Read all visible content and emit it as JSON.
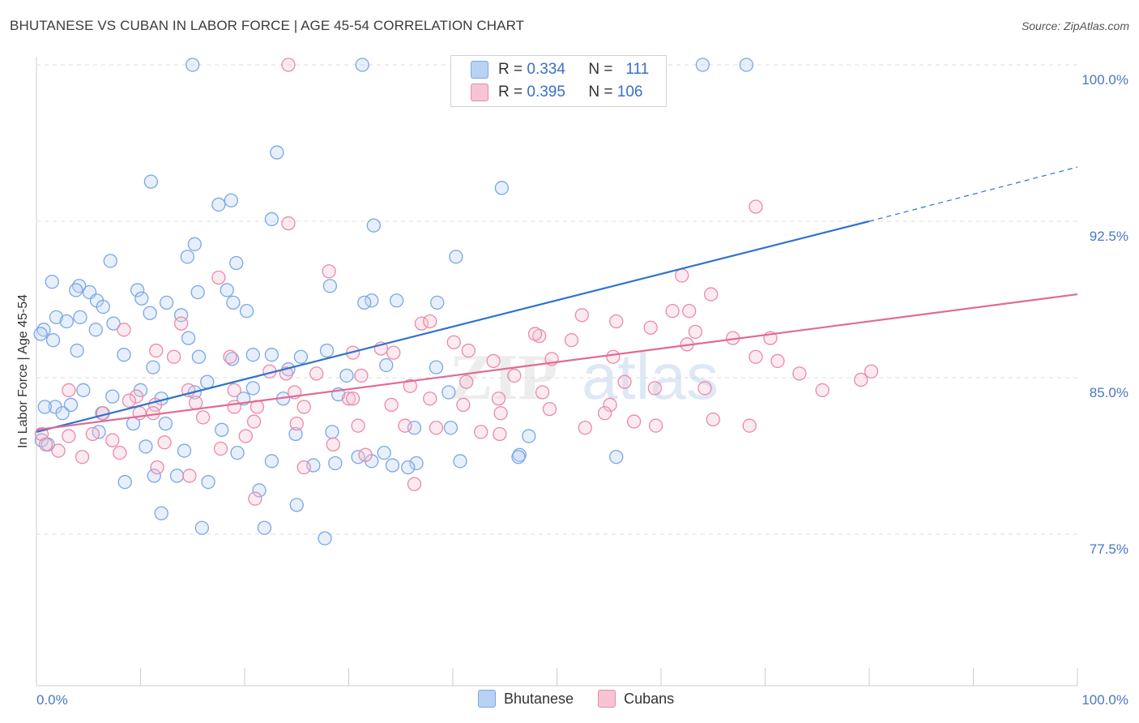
{
  "chart_data": {
    "type": "scatter",
    "title": "BHUTANESE VS CUBAN IN LABOR FORCE | AGE 45-54 CORRELATION CHART",
    "source": "Source: ZipAtlas.com",
    "xlabel": "",
    "ylabel": "In Labor Force | Age 45-54",
    "xlim": [
      0,
      100
    ],
    "ylim": [
      70.0,
      100.6
    ],
    "x_tick_labels": [
      "0.0%",
      "100.0%"
    ],
    "y_ticks": [
      {
        "value": 100.0,
        "label": "100.0%"
      },
      {
        "value": 92.5,
        "label": "92.5%"
      },
      {
        "value": 85.0,
        "label": "85.0%"
      },
      {
        "value": 77.5,
        "label": "77.5%"
      }
    ],
    "watermark": "ZIPatlas",
    "legend": [
      {
        "name": "Bhutanese",
        "r_label": "R =",
        "r": "0.334",
        "n_label": "N =",
        "n": "111",
        "color": "#7aa7e4",
        "fill": "#b9d2f3"
      },
      {
        "name": "Cubans",
        "r_label": "R =",
        "r": "0.395",
        "n_label": "N =",
        "n": "106",
        "color": "#e98aa8",
        "fill": "#f7c4d4"
      }
    ],
    "series": [
      {
        "name": "Bhutanese",
        "color": "#5b8fd6",
        "trend": {
          "x0": 0,
          "y0": 82.4,
          "x1": 80,
          "y1": 92.5,
          "dash_to_x": 100,
          "dash_to_y": 95.1,
          "line_color": "#2f73cf"
        },
        "points": [
          [
            15,
            100
          ],
          [
            31.3,
            100
          ],
          [
            64,
            100
          ],
          [
            68.2,
            100
          ],
          [
            23.1,
            95.8
          ],
          [
            11,
            94.4
          ],
          [
            44.7,
            94.1
          ],
          [
            18.7,
            93.5
          ],
          [
            17.5,
            93.3
          ],
          [
            22.6,
            92.6
          ],
          [
            32.4,
            92.3
          ],
          [
            15.2,
            91.4
          ],
          [
            14.5,
            90.8
          ],
          [
            40.3,
            90.8
          ],
          [
            7.1,
            90.6
          ],
          [
            19.2,
            90.5
          ],
          [
            1.5,
            89.6
          ],
          [
            4.1,
            89.4
          ],
          [
            5.1,
            89.1
          ],
          [
            15.5,
            89.1
          ],
          [
            18.3,
            89.2
          ],
          [
            3.8,
            89.2
          ],
          [
            9.7,
            89.2
          ],
          [
            28.2,
            89.4
          ],
          [
            5.8,
            88.7
          ],
          [
            18.9,
            88.6
          ],
          [
            34.6,
            88.7
          ],
          [
            38.5,
            88.6
          ],
          [
            32.2,
            88.7
          ],
          [
            31.5,
            88.6
          ],
          [
            10.9,
            88.1
          ],
          [
            6.4,
            88.4
          ],
          [
            13.9,
            88.0
          ],
          [
            20.2,
            88.2
          ],
          [
            4.2,
            87.9
          ],
          [
            7.4,
            87.6
          ],
          [
            0.7,
            87.3
          ],
          [
            1.9,
            87.9
          ],
          [
            14.6,
            86.9
          ],
          [
            10.1,
            88.8
          ],
          [
            12.5,
            88.6
          ],
          [
            2.9,
            87.7
          ],
          [
            5.7,
            87.3
          ],
          [
            0.4,
            87.1
          ],
          [
            1.6,
            86.8
          ],
          [
            3.9,
            86.3
          ],
          [
            8.4,
            86.1
          ],
          [
            22.6,
            86.1
          ],
          [
            25.4,
            86.0
          ],
          [
            27.9,
            86.3
          ],
          [
            15.6,
            86.0
          ],
          [
            18.8,
            85.9
          ],
          [
            20.8,
            86.1
          ],
          [
            11.2,
            85.5
          ],
          [
            24.2,
            85.4
          ],
          [
            29.8,
            85.1
          ],
          [
            33.6,
            85.6
          ],
          [
            38.4,
            85.5
          ],
          [
            16.4,
            84.8
          ],
          [
            20.8,
            84.5
          ],
          [
            10.0,
            84.4
          ],
          [
            15.2,
            84.3
          ],
          [
            19.9,
            84.0
          ],
          [
            23.7,
            84.0
          ],
          [
            29.0,
            84.2
          ],
          [
            39.6,
            84.3
          ],
          [
            4.5,
            84.4
          ],
          [
            7.3,
            84.1
          ],
          [
            12.0,
            84.0
          ],
          [
            1.8,
            83.6
          ],
          [
            3.3,
            83.7
          ],
          [
            0.8,
            83.6
          ],
          [
            2.5,
            83.3
          ],
          [
            6.3,
            83.3
          ],
          [
            9.3,
            82.8
          ],
          [
            12.4,
            82.8
          ],
          [
            17.8,
            82.5
          ],
          [
            24.9,
            82.3
          ],
          [
            28.4,
            82.4
          ],
          [
            36.3,
            82.6
          ],
          [
            39.8,
            82.6
          ],
          [
            47.3,
            82.2
          ],
          [
            0.5,
            82.0
          ],
          [
            1.1,
            81.8
          ],
          [
            6.0,
            82.4
          ],
          [
            10.5,
            81.7
          ],
          [
            14.2,
            81.5
          ],
          [
            19.3,
            81.4
          ],
          [
            22.6,
            81.0
          ],
          [
            28.7,
            80.9
          ],
          [
            32.2,
            81.0
          ],
          [
            36.5,
            80.9
          ],
          [
            40.7,
            81.0
          ],
          [
            46.4,
            81.3
          ],
          [
            46.3,
            81.2
          ],
          [
            55.7,
            81.2
          ],
          [
            13.5,
            80.3
          ],
          [
            8.5,
            80.0
          ],
          [
            11.3,
            80.3
          ],
          [
            16.5,
            80.0
          ],
          [
            21.4,
            79.6
          ],
          [
            26.6,
            80.8
          ],
          [
            30.9,
            81.2
          ],
          [
            33.4,
            81.4
          ],
          [
            34.2,
            80.8
          ],
          [
            35.7,
            80.7
          ],
          [
            25.0,
            78.9
          ],
          [
            21.9,
            77.8
          ],
          [
            27.7,
            77.3
          ],
          [
            15.9,
            77.8
          ],
          [
            12.0,
            78.5
          ]
        ]
      },
      {
        "name": "Cubans",
        "color": "#e07aa0",
        "trend": {
          "x0": 0,
          "y0": 82.5,
          "x1": 100,
          "y1": 89.0,
          "line_color": "#e06b95"
        },
        "points": [
          [
            24.2,
            100
          ],
          [
            69.1,
            93.2
          ],
          [
            24.2,
            92.4
          ],
          [
            28.1,
            90.1
          ],
          [
            17.5,
            89.8
          ],
          [
            62,
            89.9
          ],
          [
            64.8,
            89.0
          ],
          [
            61.1,
            88.2
          ],
          [
            62.7,
            88.2
          ],
          [
            52.4,
            88.0
          ],
          [
            55.7,
            87.7
          ],
          [
            48.3,
            87.0
          ],
          [
            37.0,
            87.6
          ],
          [
            37.8,
            87.7
          ],
          [
            8.4,
            87.3
          ],
          [
            13.9,
            87.6
          ],
          [
            40.1,
            86.7
          ],
          [
            33.1,
            86.4
          ],
          [
            30.4,
            86.2
          ],
          [
            47.9,
            87.1
          ],
          [
            51.4,
            86.8
          ],
          [
            59.0,
            87.4
          ],
          [
            63.3,
            87.2
          ],
          [
            66.9,
            86.9
          ],
          [
            70.5,
            86.9
          ],
          [
            11.5,
            86.3
          ],
          [
            13.2,
            86.0
          ],
          [
            18.6,
            86.0
          ],
          [
            34.3,
            86.2
          ],
          [
            41.5,
            86.3
          ],
          [
            43.9,
            85.8
          ],
          [
            49.5,
            85.9
          ],
          [
            55.4,
            86.0
          ],
          [
            62.5,
            86.6
          ],
          [
            69.1,
            86.0
          ],
          [
            71.2,
            85.8
          ],
          [
            22.4,
            85.3
          ],
          [
            24.0,
            85.2
          ],
          [
            26.9,
            85.2
          ],
          [
            31.2,
            85.1
          ],
          [
            35.9,
            84.6
          ],
          [
            45.9,
            85.1
          ],
          [
            56.5,
            84.8
          ],
          [
            73.3,
            85.2
          ],
          [
            75.5,
            84.4
          ],
          [
            79.2,
            84.9
          ],
          [
            80.2,
            85.3
          ],
          [
            3.1,
            84.4
          ],
          [
            9.6,
            84.1
          ],
          [
            14.6,
            84.4
          ],
          [
            19.0,
            84.4
          ],
          [
            24.8,
            84.3
          ],
          [
            30.0,
            84.0
          ],
          [
            37.8,
            84.0
          ],
          [
            41.3,
            84.8
          ],
          [
            44.4,
            84.0
          ],
          [
            48.6,
            84.3
          ],
          [
            55.1,
            83.7
          ],
          [
            59.4,
            84.5
          ],
          [
            64.2,
            84.5
          ],
          [
            8.9,
            83.9
          ],
          [
            11.4,
            83.7
          ],
          [
            15.3,
            83.8
          ],
          [
            19.0,
            83.6
          ],
          [
            21.2,
            83.6
          ],
          [
            25.7,
            83.6
          ],
          [
            30.4,
            84.0
          ],
          [
            34.1,
            83.7
          ],
          [
            41.0,
            83.7
          ],
          [
            44.6,
            83.3
          ],
          [
            49.3,
            83.5
          ],
          [
            54.6,
            83.3
          ],
          [
            57.4,
            82.9
          ],
          [
            59.5,
            82.7
          ],
          [
            6.4,
            83.3
          ],
          [
            9.9,
            83.3
          ],
          [
            11.2,
            83.3
          ],
          [
            16.0,
            83.1
          ],
          [
            20.9,
            82.9
          ],
          [
            25.0,
            82.8
          ],
          [
            30.9,
            82.7
          ],
          [
            35.4,
            82.7
          ],
          [
            38.4,
            82.6
          ],
          [
            42.7,
            82.4
          ],
          [
            44.5,
            82.3
          ],
          [
            52.7,
            82.6
          ],
          [
            65.0,
            83.0
          ],
          [
            68.5,
            82.7
          ],
          [
            0.5,
            82.3
          ],
          [
            3.1,
            82.2
          ],
          [
            5.4,
            82.3
          ],
          [
            7.3,
            82.0
          ],
          [
            8.0,
            81.4
          ],
          [
            12.3,
            81.9
          ],
          [
            17.7,
            81.6
          ],
          [
            20.1,
            82.2
          ],
          [
            28.5,
            81.8
          ],
          [
            31.6,
            81.3
          ],
          [
            0.9,
            81.8
          ],
          [
            2.1,
            81.5
          ],
          [
            4.4,
            81.2
          ],
          [
            11.6,
            80.7
          ],
          [
            25.7,
            80.7
          ],
          [
            14.7,
            80.3
          ],
          [
            36.3,
            79.9
          ],
          [
            21.0,
            79.2
          ]
        ]
      }
    ]
  }
}
